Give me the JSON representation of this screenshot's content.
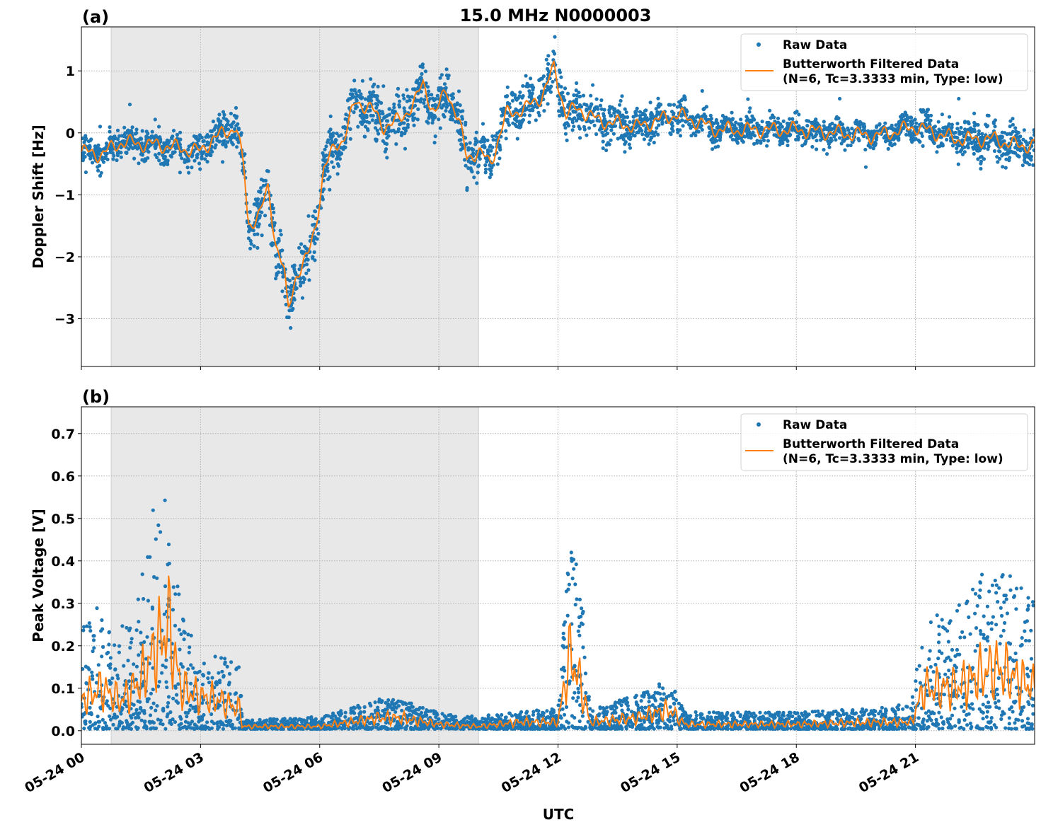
{
  "title": "15.0 MHz N0000003",
  "xlabel": "UTC",
  "colors": {
    "raw": "#1f77b4",
    "filtered": "#ff7f0e",
    "night_shading": "#e8e8e8"
  },
  "chart_data": [
    {
      "type": "scatter+line",
      "panel_label": "(a)",
      "ylabel": "Doppler Shift [Hz]",
      "xlim_hours_utc": [
        0,
        24
      ],
      "ylim": [
        -3.77,
        1.71
      ],
      "grid": true,
      "legend_placement": "top-right",
      "x_ticks": [
        "05-24 00",
        "05-24 03",
        "05-24 06",
        "05-24 09",
        "05-24 12",
        "05-24 15",
        "05-24 18",
        "05-24 21"
      ],
      "x_tick_hours": [
        0,
        3,
        6,
        9,
        12,
        15,
        18,
        21
      ],
      "x_tick_labels_visible": false,
      "y_ticks": [
        1,
        0,
        -1,
        -2,
        -3
      ],
      "y_tick_labels": [
        "1",
        "0",
        "−1",
        "−2",
        "−3"
      ],
      "shaded_interval_hours": [
        0.75,
        10.0
      ],
      "series": [
        {
          "name": "Raw Data",
          "kind": "scatter",
          "approx_spread_hz": [
            [
              0,
              0.2
            ],
            [
              4,
              0.25
            ],
            [
              4.3,
              0.4
            ],
            [
              5.2,
              0.45
            ],
            [
              6,
              0.4
            ],
            [
              8,
              0.4
            ],
            [
              9,
              0.4
            ],
            [
              11,
              0.35
            ],
            [
              12,
              0.4
            ],
            [
              14,
              0.3
            ],
            [
              16,
              0.2
            ],
            [
              20,
              0.2
            ],
            [
              22,
              0.25
            ],
            [
              24,
              0.3
            ]
          ]
        },
        {
          "name": "Butterworth Filtered Data\n(N=6, Tc=3.3333 min, Type: low)",
          "kind": "line",
          "points": [
            [
              0,
              -0.3
            ],
            [
              0.5,
              -0.35
            ],
            [
              1,
              -0.15
            ],
            [
              2,
              -0.2
            ],
            [
              3,
              -0.3
            ],
            [
              3.3,
              -0.1
            ],
            [
              3.9,
              0.1
            ],
            [
              4.1,
              -0.6
            ],
            [
              4.2,
              -1.5
            ],
            [
              4.5,
              -1.3
            ],
            [
              4.7,
              -0.9
            ],
            [
              4.9,
              -1.8
            ],
            [
              5.1,
              -2.2
            ],
            [
              5.2,
              -2.9
            ],
            [
              5.4,
              -2.3
            ],
            [
              5.7,
              -2.0
            ],
            [
              5.9,
              -1.5
            ],
            [
              6.1,
              -0.6
            ],
            [
              6.4,
              -0.2
            ],
            [
              6.6,
              -0.1
            ],
            [
              6.9,
              0.5
            ],
            [
              7.3,
              0.4
            ],
            [
              7.6,
              0.1
            ],
            [
              8.0,
              0.2
            ],
            [
              8.4,
              0.5
            ],
            [
              8.6,
              0.8
            ],
            [
              8.9,
              0.3
            ],
            [
              9.2,
              0.7
            ],
            [
              9.5,
              0.2
            ],
            [
              9.7,
              -0.4
            ],
            [
              10.0,
              -0.3
            ],
            [
              10.3,
              -0.5
            ],
            [
              10.7,
              0.3
            ],
            [
              11.2,
              0.4
            ],
            [
              11.6,
              0.6
            ],
            [
              11.9,
              1.05
            ],
            [
              12.2,
              0.3
            ],
            [
              12.5,
              0.4
            ],
            [
              13,
              0.2
            ],
            [
              14,
              0.1
            ],
            [
              15,
              0.3
            ],
            [
              16,
              0.05
            ],
            [
              18,
              0.05
            ],
            [
              20,
              -0.05
            ],
            [
              21,
              0.1
            ],
            [
              22,
              -0.1
            ],
            [
              23,
              -0.1
            ],
            [
              23.5,
              -0.2
            ],
            [
              24,
              -0.2
            ]
          ]
        }
      ]
    },
    {
      "type": "scatter+line",
      "panel_label": "(b)",
      "ylabel": "Peak Voltage [V]",
      "xlim_hours_utc": [
        0,
        24
      ],
      "ylim": [
        -0.032,
        0.763
      ],
      "grid": true,
      "legend_placement": "top-right",
      "x_ticks": [
        "05-24 00",
        "05-24 03",
        "05-24 06",
        "05-24 09",
        "05-24 12",
        "05-24 15",
        "05-24 18",
        "05-24 21"
      ],
      "x_tick_hours": [
        0,
        3,
        6,
        9,
        12,
        15,
        18,
        21
      ],
      "y_ticks": [
        0.7,
        0.6,
        0.5,
        0.4,
        0.3,
        0.2,
        0.1,
        0.0
      ],
      "y_tick_labels": [
        "0.7",
        "0.6",
        "0.5",
        "0.4",
        "0.3",
        "0.2",
        "0.1",
        "0.0"
      ],
      "shaded_interval_hours": [
        0.75,
        10.0
      ],
      "series": [
        {
          "name": "Raw Data",
          "kind": "scatter",
          "approx_upper_v": [
            [
              0,
              0.25
            ],
            [
              0.5,
              0.3
            ],
            [
              1,
              0.25
            ],
            [
              1.5,
              0.35
            ],
            [
              1.9,
              0.6
            ],
            [
              2.2,
              0.55
            ],
            [
              2.5,
              0.3
            ],
            [
              3,
              0.15
            ],
            [
              3.5,
              0.18
            ],
            [
              4.0,
              0.15
            ],
            [
              4.05,
              0.02
            ],
            [
              6,
              0.03
            ],
            [
              7.5,
              0.07
            ],
            [
              8,
              0.07
            ],
            [
              9,
              0.04
            ],
            [
              10,
              0.03
            ],
            [
              11,
              0.04
            ],
            [
              12,
              0.05
            ],
            [
              12.3,
              0.45
            ],
            [
              12.6,
              0.4
            ],
            [
              12.8,
              0.05
            ],
            [
              14,
              0.08
            ],
            [
              14.8,
              0.12
            ],
            [
              15.2,
              0.04
            ],
            [
              18,
              0.04
            ],
            [
              20,
              0.05
            ],
            [
              20.9,
              0.06
            ],
            [
              21.2,
              0.25
            ],
            [
              22,
              0.3
            ],
            [
              23,
              0.4
            ],
            [
              24,
              0.3
            ]
          ]
        },
        {
          "name": "Butterworth Filtered Data\n(N=6, Tc=3.3333 min, Type: low)",
          "kind": "line",
          "points": [
            [
              0,
              0.07
            ],
            [
              0.5,
              0.1
            ],
            [
              1,
              0.07
            ],
            [
              1.5,
              0.12
            ],
            [
              1.9,
              0.2
            ],
            [
              2.2,
              0.25
            ],
            [
              2.5,
              0.1
            ],
            [
              3,
              0.08
            ],
            [
              3.5,
              0.07
            ],
            [
              4.0,
              0.05
            ],
            [
              4.05,
              0.01
            ],
            [
              6,
              0.01
            ],
            [
              7.5,
              0.03
            ],
            [
              8,
              0.03
            ],
            [
              9,
              0.015
            ],
            [
              10,
              0.01
            ],
            [
              11,
              0.02
            ],
            [
              12,
              0.02
            ],
            [
              12.3,
              0.18
            ],
            [
              12.6,
              0.1
            ],
            [
              12.8,
              0.02
            ],
            [
              14,
              0.03
            ],
            [
              14.8,
              0.05
            ],
            [
              15.2,
              0.015
            ],
            [
              18,
              0.015
            ],
            [
              20,
              0.02
            ],
            [
              20.9,
              0.02
            ],
            [
              21.2,
              0.1
            ],
            [
              22,
              0.1
            ],
            [
              23,
              0.15
            ],
            [
              24,
              0.1
            ]
          ]
        }
      ]
    }
  ]
}
